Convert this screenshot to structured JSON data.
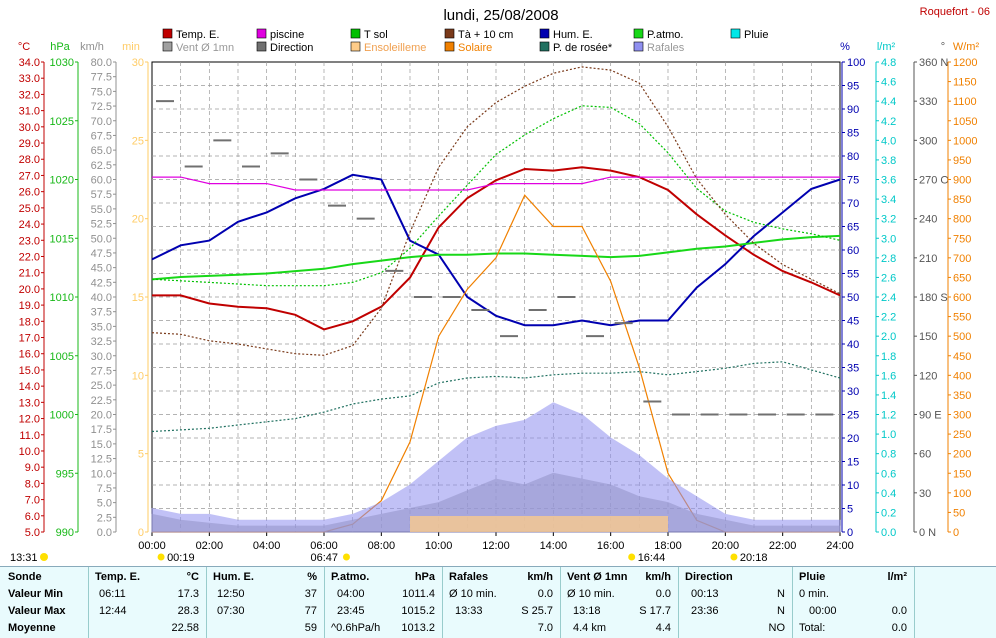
{
  "title": "lundi, 25/08/2008",
  "station": "Roquefort - 06",
  "legend": [
    {
      "label": "Temp. E.",
      "color": "#c00000"
    },
    {
      "label": "piscine",
      "color": "#e000e0"
    },
    {
      "label": "T sol",
      "color": "#00c000"
    },
    {
      "label": "Tà + 10 cm",
      "color": "#7a3a1a"
    },
    {
      "label": "Hum. E.",
      "color": "#0000b0"
    },
    {
      "label": "P.atmo.",
      "color": "#18d818"
    },
    {
      "label": "Pluie",
      "color": "#00e8e8"
    },
    {
      "label": "Vent Ø 1mn",
      "color": "#a0a0a0"
    },
    {
      "label": "Direction",
      "color": "#707070"
    },
    {
      "label": "Ensoleilleme",
      "color": "#ffcc88"
    },
    {
      "label": "Solaire",
      "color": "#f08000"
    },
    {
      "label": "P. de rosée*",
      "color": "#207060"
    },
    {
      "label": "Rafales",
      "color": "#9090f0"
    }
  ],
  "axes": [
    {
      "unit": "°C",
      "color": "#c00000",
      "ticks": [
        "34.0",
        "33.0",
        "32.0",
        "31.0",
        "30.0",
        "29.0",
        "28.0",
        "27.0",
        "26.0",
        "25.0",
        "24.0",
        "23.0",
        "22.0",
        "21.0",
        "20.0",
        "19.0",
        "18.0",
        "17.0",
        "16.0",
        "15.0",
        "14.0",
        "13.0",
        "12.0",
        "11.0",
        "10.0",
        "9.0",
        "8.0",
        "7.0",
        "6.0",
        "5.0"
      ]
    },
    {
      "unit": "hPa",
      "color": "#18b818",
      "ticks": [
        "1030",
        "1025",
        "1020",
        "1015",
        "1010",
        "1005",
        "1000",
        "995",
        "990"
      ]
    },
    {
      "unit": "km/h",
      "color": "#909090",
      "ticks": [
        "80.0",
        "77.5",
        "75.0",
        "72.5",
        "70.0",
        "67.5",
        "65.0",
        "62.5",
        "60.0",
        "57.5",
        "55.0",
        "52.5",
        "50.0",
        "47.5",
        "45.0",
        "42.5",
        "40.0",
        "37.5",
        "35.0",
        "32.5",
        "30.0",
        "27.5",
        "25.0",
        "22.5",
        "20.0",
        "17.5",
        "15.0",
        "12.5",
        "10.0",
        "7.5",
        "5.0",
        "2.5",
        "0.0"
      ]
    },
    {
      "unit": "min",
      "color": "#ffcc66",
      "ticks": [
        "30",
        "25",
        "20",
        "15",
        "10",
        "5",
        "0"
      ]
    },
    {
      "unit": "%",
      "color": "#0000b0",
      "ticks": [
        "100",
        "95",
        "90",
        "85",
        "80",
        "75",
        "70",
        "65",
        "60",
        "55",
        "50",
        "45",
        "40",
        "35",
        "30",
        "25",
        "20",
        "15",
        "10",
        "5",
        "0"
      ]
    },
    {
      "unit": "l/m²",
      "color": "#00c8c8",
      "ticks": [
        "4.8",
        "4.6",
        "4.4",
        "4.2",
        "4.0",
        "3.8",
        "3.6",
        "3.4",
        "3.2",
        "3.0",
        "2.8",
        "2.6",
        "2.4",
        "2.2",
        "2.0",
        "1.8",
        "1.6",
        "1.4",
        "1.2",
        "1.0",
        "0.8",
        "0.6",
        "0.4",
        "0.2",
        "0.0"
      ]
    },
    {
      "unit": "°",
      "color": "#555555",
      "ticks": [
        "360 N",
        "330",
        "300",
        "270 O",
        "240",
        "210",
        "180 S",
        "150",
        "120",
        "90 E",
        "60",
        "30",
        "0 N"
      ]
    },
    {
      "unit": "W/m²",
      "color": "#f08000",
      "ticks": [
        "1200",
        "1150",
        "1100",
        "1050",
        "1000",
        "950",
        "900",
        "850",
        "800",
        "750",
        "700",
        "650",
        "600",
        "550",
        "500",
        "450",
        "400",
        "350",
        "300",
        "250",
        "200",
        "150",
        "100",
        "50",
        "0"
      ]
    }
  ],
  "x_ticks": [
    "00:00",
    "02:00",
    "04:00",
    "06:00",
    "08:00",
    "10:00",
    "12:00",
    "14:00",
    "16:00",
    "18:00",
    "20:00",
    "22:00",
    "24:00"
  ],
  "sun_markers": {
    "sunrise_day": "13:31",
    "moon": "00:19",
    "sunrise": "06:47",
    "moon_set": "16:44",
    "sunset": "20:18"
  },
  "chart_data": {
    "type": "line",
    "x": [
      "00:00",
      "01:00",
      "02:00",
      "03:00",
      "04:00",
      "05:00",
      "06:00",
      "07:00",
      "08:00",
      "09:00",
      "10:00",
      "11:00",
      "12:00",
      "13:00",
      "14:00",
      "15:00",
      "16:00",
      "17:00",
      "18:00",
      "19:00",
      "20:00",
      "21:00",
      "22:00",
      "23:00",
      "24:00"
    ],
    "series": [
      {
        "name": "Temp. E.",
        "axis": "°C",
        "color": "#c00000",
        "values": [
          19.6,
          19.6,
          19.1,
          18.9,
          18.8,
          18.4,
          17.5,
          18.0,
          18.9,
          20.7,
          23.8,
          25.6,
          26.7,
          27.4,
          27.3,
          27.5,
          27.3,
          26.9,
          26.1,
          24.6,
          23.3,
          22.1,
          21.1,
          20.4,
          19.6
        ]
      },
      {
        "name": "Hum. E.",
        "axis": "%",
        "color": "#0000b0",
        "values": [
          58,
          61,
          62,
          66,
          68,
          71,
          73,
          76,
          75,
          62,
          59,
          50,
          46,
          44,
          44,
          45,
          44,
          45,
          45,
          52,
          57,
          63,
          68,
          73,
          75
        ]
      },
      {
        "name": "P.atmo.",
        "axis": "hPa",
        "color": "#18d818",
        "values": [
          1011.5,
          1011.7,
          1011.8,
          1011.9,
          1012.0,
          1012.2,
          1012.4,
          1012.8,
          1013.1,
          1013.4,
          1013.6,
          1013.6,
          1013.7,
          1013.7,
          1013.6,
          1013.5,
          1013.4,
          1013.5,
          1013.8,
          1014.1,
          1014.3,
          1014.6,
          1014.9,
          1015.1,
          1015.2
        ]
      },
      {
        "name": "piscine",
        "axis": "°C",
        "color": "#e000e0",
        "values": [
          26.9,
          26.9,
          26.5,
          26.5,
          26.5,
          26.1,
          26.1,
          26.1,
          26.1,
          26.1,
          26.1,
          26.1,
          26.5,
          26.5,
          26.5,
          26.5,
          26.9,
          26.9,
          26.9,
          26.9,
          26.9,
          26.9,
          26.9,
          26.9,
          26.9
        ]
      },
      {
        "name": "T sol",
        "axis": "°C",
        "color": "#00c000",
        "values": [
          20.6,
          20.5,
          20.4,
          20.3,
          20.2,
          20.2,
          20.2,
          20.4,
          21.0,
          22.5,
          24.5,
          26.4,
          28.3,
          29.5,
          30.5,
          31.3,
          31.2,
          30.2,
          28.4,
          26.2,
          24.8,
          24.1,
          23.7,
          23.4,
          23.0
        ]
      },
      {
        "name": "Tà + 10 cm",
        "axis": "°C",
        "color": "#7a3a1a",
        "values": [
          17.3,
          17.2,
          16.8,
          16.6,
          16.3,
          16.0,
          15.9,
          16.5,
          18.8,
          23.5,
          27.5,
          30.0,
          31.5,
          32.5,
          33.3,
          33.7,
          33.5,
          32.7,
          30.0,
          26.8,
          24.6,
          22.8,
          21.5,
          20.6,
          19.7
        ]
      },
      {
        "name": "P. de rosée*",
        "axis": "°C",
        "color": "#207060",
        "values": [
          11.2,
          11.3,
          11.4,
          11.6,
          11.8,
          12.0,
          12.4,
          12.9,
          13.2,
          13.4,
          14.2,
          14.5,
          14.6,
          14.5,
          14.7,
          14.8,
          14.8,
          14.9,
          14.7,
          14.9,
          15.1,
          15.4,
          15.5,
          15.0,
          14.5
        ]
      },
      {
        "name": "Solaire",
        "axis": "W/m²",
        "color": "#f08000",
        "values": [
          0,
          0,
          0,
          0,
          0,
          0,
          0,
          20,
          80,
          230,
          500,
          620,
          700,
          860,
          780,
          780,
          640,
          420,
          150,
          30,
          0,
          0,
          0,
          0,
          0
        ]
      },
      {
        "name": "Vent Ø 1mn",
        "axis": "km/h",
        "color": "#a0a0a0",
        "values": [
          3,
          2,
          1.5,
          1,
          1,
          1,
          1,
          2,
          3,
          4,
          5,
          7,
          9,
          8,
          10,
          9,
          8,
          6,
          5,
          3,
          2,
          1,
          1,
          1,
          1
        ]
      },
      {
        "name": "Rafales",
        "axis": "km/h",
        "color": "#9090f0",
        "values": [
          4,
          3,
          3,
          2,
          2,
          2,
          2,
          3,
          5,
          8,
          12,
          16,
          18,
          19,
          22,
          20,
          16,
          13,
          9,
          6,
          3,
          2,
          2,
          2,
          2
        ]
      },
      {
        "name": "Direction",
        "axis": "°",
        "color": "#707070",
        "values": [
          330,
          280,
          300,
          280,
          290,
          270,
          250,
          240,
          200,
          180,
          180,
          170,
          150,
          170,
          180,
          150,
          160,
          100,
          90,
          90,
          90,
          90,
          90,
          90,
          90
        ]
      },
      {
        "name": "Ensoleilleme",
        "axis": "min",
        "color": "#ffcc88",
        "values": [
          0,
          0,
          0,
          0,
          0,
          0,
          0,
          0,
          0,
          1,
          1,
          1,
          1,
          1,
          1,
          1,
          1,
          1,
          1,
          0,
          0,
          0,
          0,
          0,
          0
        ]
      },
      {
        "name": "Pluie",
        "axis": "l/m²",
        "color": "#00e8e8",
        "values": [
          0,
          0,
          0,
          0,
          0,
          0,
          0,
          0,
          0,
          0,
          0,
          0,
          0,
          0,
          0,
          0,
          0,
          0,
          0,
          0,
          0,
          0,
          0,
          0,
          0
        ]
      }
    ]
  },
  "table": {
    "sonde": {
      "title": "Sonde",
      "rows": [
        "Valeur Min",
        "Valeur Max",
        "Moyenne"
      ]
    },
    "temp": {
      "title": "Temp. E.",
      "unit": "°C",
      "min_time": "06:11",
      "min_val": "17.3",
      "max_time": "12:44",
      "max_val": "28.3",
      "avg": "22.58"
    },
    "hum": {
      "title": "Hum. E.",
      "unit": "%",
      "min_time": "12:50",
      "min_val": "37",
      "max_time": "07:30",
      "max_val": "77",
      "avg": "59"
    },
    "patmo": {
      "title": "P.atmo.",
      "unit": "hPa",
      "min_time": "04:00",
      "min_val": "1011.4",
      "max_time": "23:45",
      "max_val": "1015.2",
      "trend": "^0.6hPa/h",
      "avg": "1013.2"
    },
    "rafales": {
      "title": "Rafales",
      "unit": "km/h",
      "min_label": "Ø 10 min.",
      "min_val": "0.0",
      "max_time": "13:33",
      "max_val": "S 25.7",
      "avg": "7.0"
    },
    "vent": {
      "title": "Vent Ø 1mn",
      "unit": "km/h",
      "min_label": "Ø 10 min.",
      "min_val": "0.0",
      "max_time": "13:18",
      "max_val": "S 17.7",
      "dist": "4.4 km",
      "avg": "4.4"
    },
    "direction": {
      "title": "Direction",
      "min_time": "00:13",
      "min_val": "N",
      "max_time": "23:36",
      "max_val": "N",
      "avg": "NO"
    },
    "pluie": {
      "title": "Pluie",
      "unit": "l/m²",
      "min_label": "0 min.",
      "max_time": "00:00",
      "max_val": "0.0",
      "total_label": "Total:",
      "total": "0.0"
    }
  }
}
